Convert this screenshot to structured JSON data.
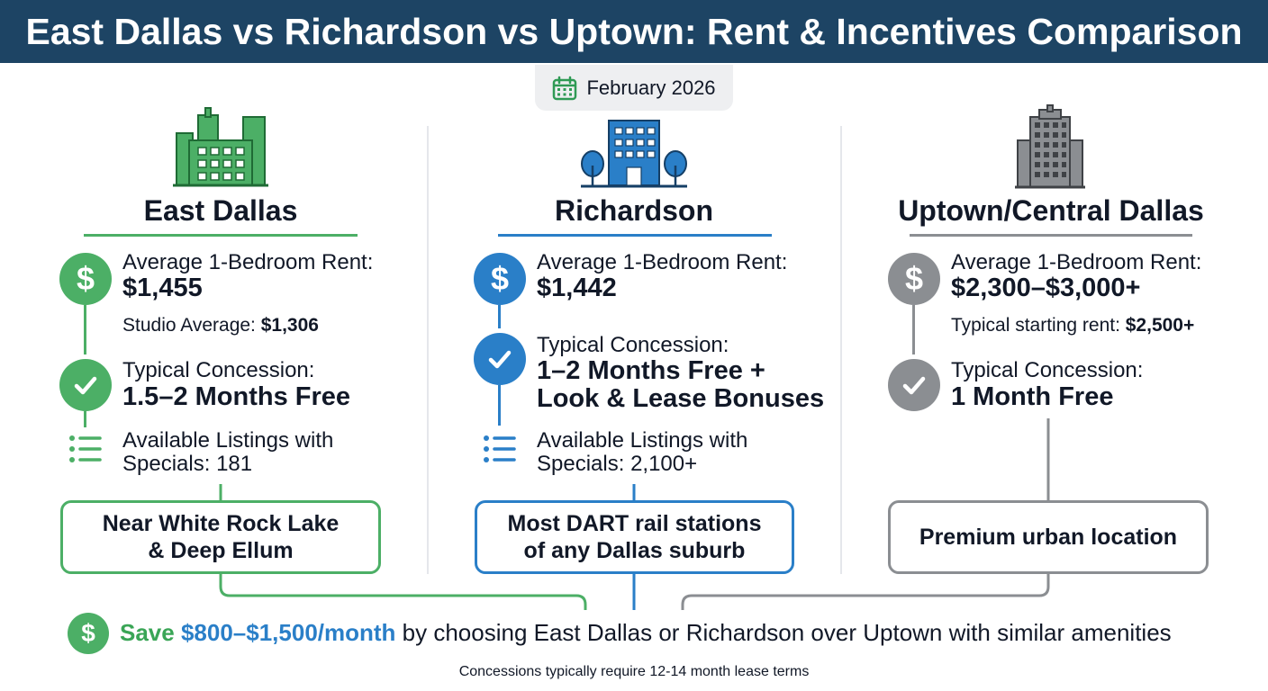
{
  "title": "East Dallas vs Richardson vs Uptown: Rent & Incentives Comparison",
  "date": "February 2026",
  "colors": {
    "header_bg": "#1d4464",
    "east_dallas": "#4caf66",
    "richardson": "#2a7fc8",
    "uptown": "#8b8e92",
    "savings_green": "#3aa556",
    "savings_blue": "#2a7fc8"
  },
  "columns": [
    {
      "name": "East Dallas",
      "icon": "green-buildings-icon",
      "rent_label": "Average 1-Bedroom Rent:",
      "rent_value": "$1,455",
      "rent_note_label": "Studio Average: ",
      "rent_note_value": "$1,306",
      "concession_label": "Typical Concession:",
      "concession_value": "1.5–2 Months Free",
      "listings_line1": "Available Listings with",
      "listings_line2_label": "Specials: ",
      "listings_line2_value": "181",
      "callout": "Near White Rock Lake\n& Deep Ellum"
    },
    {
      "name": "Richardson",
      "icon": "blue-building-trees-icon",
      "rent_label": "Average 1-Bedroom Rent:",
      "rent_value": "$1,442",
      "concession_label": "Typical Concession:",
      "concession_value_line1": "1–2 Months Free +",
      "concession_value_line2": "Look & Lease Bonuses",
      "listings_line1": "Available Listings with",
      "listings_line2_label": "Specials: ",
      "listings_line2_value": "2,100+",
      "callout": "Most DART rail stations\nof any Dallas suburb"
    },
    {
      "name": "Uptown/Central Dallas",
      "icon": "gray-skyscraper-icon",
      "rent_label": "Average 1-Bedroom Rent:",
      "rent_value": "$2,300–$3,000+",
      "rent_note_label": "Typical starting rent: ",
      "rent_note_value": "$2,500+",
      "concession_label": "Typical Concession:",
      "concession_value": "1 Month Free",
      "callout": "Premium urban location"
    }
  ],
  "savings": {
    "prefix": "Save ",
    "amount": "$800–$1,500/month",
    "suffix": " by choosing East Dallas or Richardson over Uptown with similar amenities"
  },
  "footnote": "Concessions typically require 12-14 month lease terms"
}
